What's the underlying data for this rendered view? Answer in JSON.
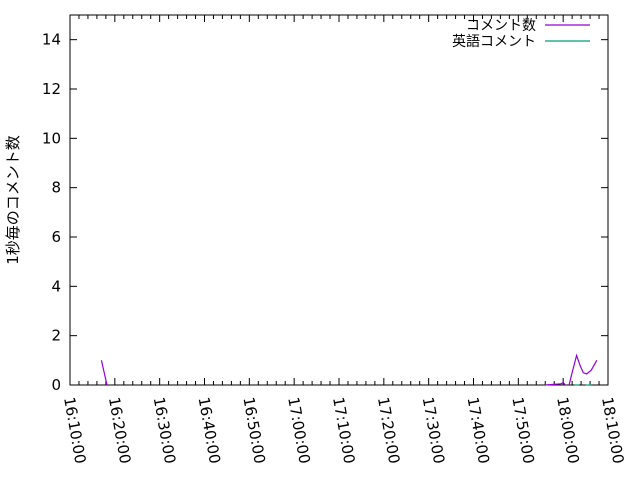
{
  "chart_data": {
    "type": "line",
    "title": "",
    "xlabel": "",
    "ylabel": "1秒毎のコメント数",
    "x_format": "HH:MM:SS",
    "xlim": [
      "16:10:00",
      "18:10:00"
    ],
    "ylim": [
      0,
      15
    ],
    "x_ticks": [
      "16:10:00",
      "16:20:00",
      "16:30:00",
      "16:40:00",
      "16:50:00",
      "17:00:00",
      "17:10:00",
      "17:20:00",
      "17:30:00",
      "17:40:00",
      "17:50:00",
      "18:00:00",
      "18:10:00"
    ],
    "y_ticks": [
      "0",
      "2",
      "4",
      "6",
      "8",
      "10",
      "12",
      "14"
    ],
    "grid": false,
    "legend_position": "top-right",
    "series": [
      {
        "name": "コメント数",
        "color": "#9400d3",
        "points": [
          [
            "16:17:00",
            1
          ],
          [
            "16:18:15",
            0
          ],
          null,
          [
            "17:56:00",
            0
          ],
          [
            "17:59:30",
            0.05
          ],
          [
            "18:00:00",
            0.1
          ],
          [
            "18:00:30",
            0
          ],
          null,
          [
            "18:01:20",
            0
          ],
          [
            "18:02:00",
            0.5
          ],
          [
            "18:03:00",
            1.2
          ],
          [
            "18:03:45",
            0.8
          ],
          [
            "18:04:30",
            0.5
          ],
          [
            "18:05:15",
            0.45
          ],
          [
            "18:06:15",
            0.6
          ],
          [
            "18:07:30",
            1.0
          ]
        ]
      },
      {
        "name": "英語コメント",
        "color": "#009e73",
        "points": [
          [
            "18:02:30",
            0
          ],
          [
            "18:03:30",
            0
          ],
          null,
          [
            "18:05:00",
            0
          ],
          [
            "18:06:15",
            0
          ]
        ]
      }
    ]
  }
}
